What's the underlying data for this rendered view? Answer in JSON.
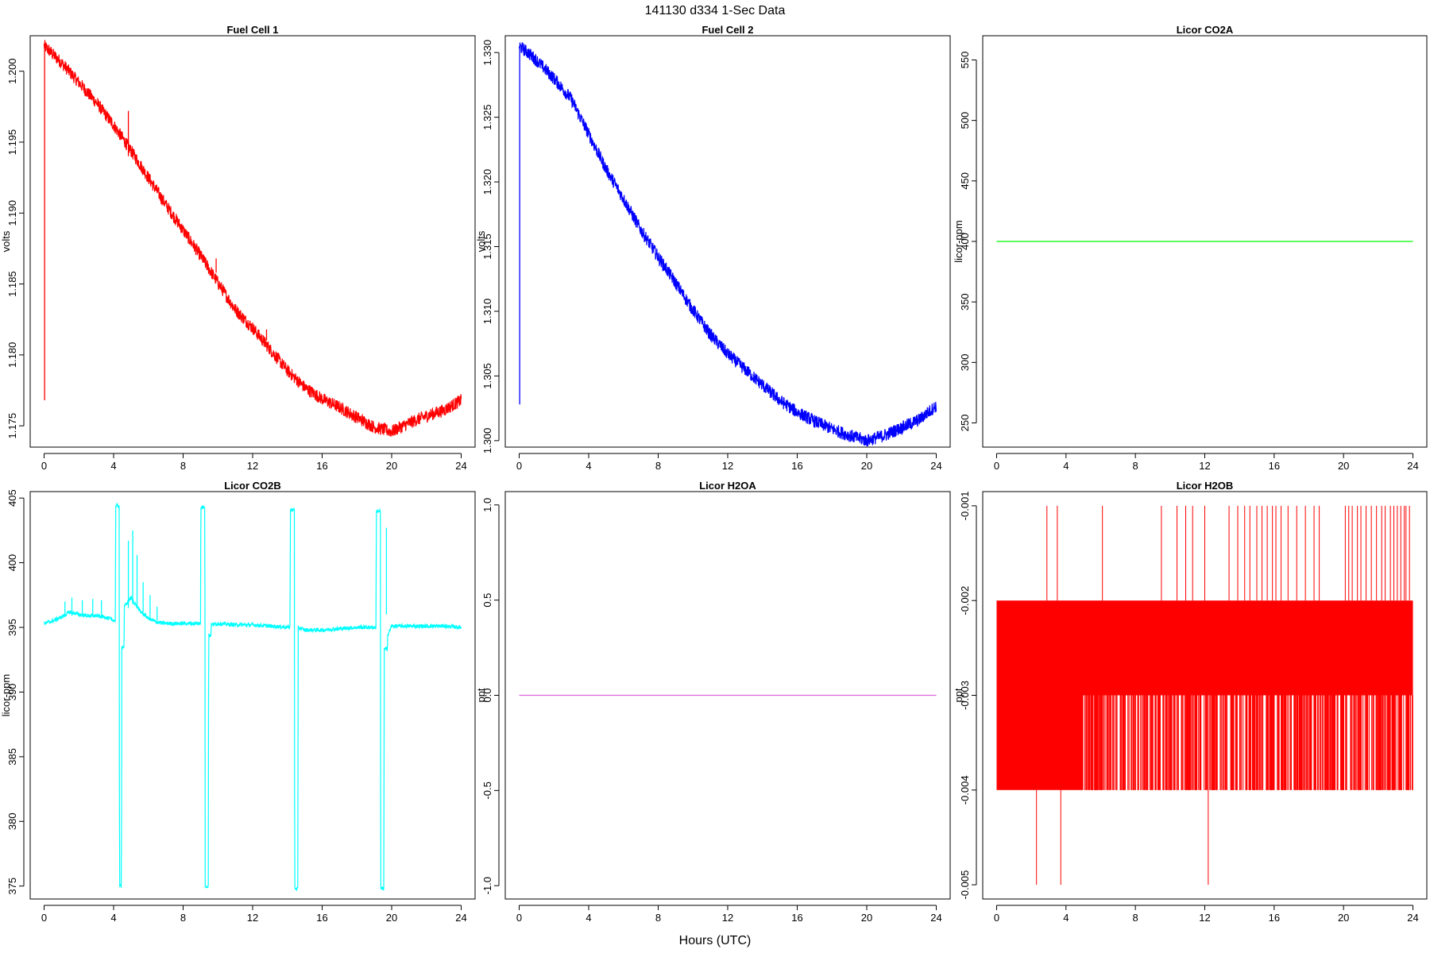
{
  "figure": {
    "title": "141130   d334   1-Sec Data",
    "xlabel": "Hours (UTC)"
  },
  "chart_data": [
    {
      "type": "line",
      "title": "Fuel Cell 1",
      "ylabel": "volts",
      "color": "#ff0000",
      "xlim": [
        -0.8,
        24.8
      ],
      "ylim": [
        1.1735,
        1.2025
      ],
      "xticks": [
        "0",
        "4",
        "8",
        "12",
        "16",
        "20",
        "24"
      ],
      "yticks": [
        1.175,
        1.18,
        1.185,
        1.19,
        1.195,
        1.2
      ],
      "ytick_labels": [
        "1.175",
        "1.180",
        "1.185",
        "1.190",
        "1.195",
        "1.200"
      ],
      "noise": 0.00045,
      "x": [
        0,
        0.5,
        1,
        2,
        3,
        4,
        5,
        6,
        7,
        8,
        9,
        10,
        11,
        12,
        13,
        14,
        15,
        16,
        17,
        18,
        19,
        20,
        21,
        22,
        23,
        24
      ],
      "y": [
        1.2018,
        1.2012,
        1.2006,
        1.1992,
        1.1978,
        1.1962,
        1.1944,
        1.1925,
        1.1906,
        1.1888,
        1.187,
        1.1851,
        1.1832,
        1.1819,
        1.1804,
        1.1789,
        1.1777,
        1.1769,
        1.1763,
        1.1756,
        1.1749,
        1.1746,
        1.1752,
        1.1757,
        1.1761,
        1.1768
      ],
      "spikes": [
        {
          "x": 0.03,
          "y0": 1.1768,
          "y1": 1.2018
        },
        {
          "x": 4.85,
          "y0": 1.194,
          "y1": 1.1972
        },
        {
          "x": 9.9,
          "y0": 1.1858,
          "y1": 1.1868
        },
        {
          "x": 12.8,
          "y0": 1.181,
          "y1": 1.1818
        }
      ]
    },
    {
      "type": "line",
      "title": "Fuel Cell 2",
      "ylabel": "volts",
      "color": "#0000ff",
      "xlim": [
        -0.8,
        24.8
      ],
      "ylim": [
        1.2995,
        1.3313
      ],
      "xticks": [
        "0",
        "4",
        "8",
        "12",
        "16",
        "20",
        "24"
      ],
      "yticks": [
        1.3,
        1.305,
        1.31,
        1.315,
        1.32,
        1.325,
        1.33
      ],
      "ytick_labels": [
        "1.300",
        "1.305",
        "1.310",
        "1.315",
        "1.320",
        "1.325",
        "1.330"
      ],
      "noise": 0.0005,
      "x": [
        0,
        0.5,
        1,
        2,
        3,
        4,
        5,
        6,
        7,
        8,
        9,
        10,
        11,
        12,
        13,
        14,
        15,
        16,
        17,
        18,
        19,
        20,
        21,
        22,
        23,
        24
      ],
      "y": [
        1.3305,
        1.33,
        1.3294,
        1.328,
        1.3264,
        1.3237,
        1.321,
        1.3187,
        1.3163,
        1.3142,
        1.3122,
        1.3101,
        1.3082,
        1.3067,
        1.3055,
        1.3043,
        1.3031,
        1.3022,
        1.3015,
        1.3009,
        1.3004,
        1.3,
        1.3004,
        1.301,
        1.3016,
        1.3027
      ],
      "spikes": [
        {
          "x": 0.03,
          "y0": 1.3028,
          "y1": 1.3305
        }
      ]
    },
    {
      "type": "line",
      "title": "Licor CO2A",
      "ylabel": "licor-ppm",
      "color": "#00ff00",
      "xlim": [
        -0.8,
        24.8
      ],
      "ylim": [
        230,
        570
      ],
      "xticks": [
        "0",
        "4",
        "8",
        "12",
        "16",
        "20",
        "24"
      ],
      "yticks": [
        250,
        300,
        350,
        400,
        450,
        500,
        550
      ],
      "ytick_labels": [
        "250",
        "300",
        "350",
        "400",
        "450",
        "500",
        "550"
      ],
      "noise": 0,
      "x": [
        0,
        24
      ],
      "y": [
        400,
        400
      ]
    },
    {
      "type": "line",
      "title": "Licor CO2B",
      "ylabel": "licor-ppm",
      "color": "#00ffff",
      "xlim": [
        -0.8,
        24.8
      ],
      "ylim": [
        374,
        405.5
      ],
      "xticks": [
        "0",
        "4",
        "8",
        "12",
        "16",
        "20",
        "24"
      ],
      "yticks": [
        375,
        380,
        385,
        390,
        395,
        400,
        405
      ],
      "ytick_labels": [
        "375",
        "380",
        "385",
        "390",
        "395",
        "400",
        "405"
      ],
      "noise": 0.15,
      "x": [
        0,
        0.5,
        1,
        1.5,
        2,
        2.5,
        3,
        3.5,
        4.1,
        4.12,
        4.32,
        4.34,
        4.45,
        4.47,
        4.6,
        4.62,
        5,
        5.5,
        6,
        6.5,
        7,
        8,
        9.0,
        9.02,
        9.25,
        9.27,
        9.45,
        9.47,
        9.6,
        9.62,
        10,
        11,
        12,
        13,
        14.15,
        14.17,
        14.4,
        14.42,
        14.6,
        14.62,
        15,
        16,
        17,
        18,
        19.1,
        19.12,
        19.35,
        19.37,
        19.55,
        19.57,
        19.75,
        19.77,
        20,
        21,
        22,
        23,
        24
      ],
      "y": [
        395.3,
        395.5,
        395.8,
        396.2,
        396.0,
        395.9,
        395.9,
        395.8,
        395.5,
        404.4,
        404.4,
        375.0,
        375.0,
        393.5,
        393.5,
        396.6,
        397.3,
        396.3,
        395.7,
        395.4,
        395.3,
        395.3,
        395.3,
        404.3,
        404.3,
        375.0,
        375.0,
        394.4,
        394.4,
        395.2,
        395.3,
        395.2,
        395.2,
        395.1,
        395.0,
        404.1,
        404.1,
        374.8,
        374.8,
        395.0,
        394.8,
        394.8,
        394.9,
        395.0,
        395.0,
        404.0,
        404.0,
        374.8,
        374.8,
        393.3,
        393.3,
        394.4,
        395.1,
        395.1,
        395.1,
        395.1,
        395.0
      ],
      "spikes": [
        {
          "x": 1.2,
          "y0": 395.8,
          "y1": 397.0
        },
        {
          "x": 1.6,
          "y0": 395.9,
          "y1": 397.3
        },
        {
          "x": 2.2,
          "y0": 395.9,
          "y1": 397.1
        },
        {
          "x": 2.8,
          "y0": 395.8,
          "y1": 397.2
        },
        {
          "x": 3.3,
          "y0": 395.8,
          "y1": 397.1
        },
        {
          "x": 4.85,
          "y0": 396.5,
          "y1": 401.7
        },
        {
          "x": 5.1,
          "y0": 396.8,
          "y1": 402.5
        },
        {
          "x": 5.35,
          "y0": 396.5,
          "y1": 400.6
        },
        {
          "x": 5.7,
          "y0": 396.2,
          "y1": 398.5
        },
        {
          "x": 6.1,
          "y0": 395.8,
          "y1": 397.5
        },
        {
          "x": 6.5,
          "y0": 395.5,
          "y1": 396.6
        },
        {
          "x": 19.7,
          "y0": 396.0,
          "y1": 402.7
        }
      ]
    },
    {
      "type": "line",
      "title": "Licor H2OA",
      "ylabel": "ppt",
      "color": "#dd66dd",
      "xlim": [
        -0.8,
        24.8
      ],
      "ylim": [
        -1.07,
        1.07
      ],
      "xticks": [
        "0",
        "4",
        "8",
        "12",
        "16",
        "20",
        "24"
      ],
      "yticks": [
        -1.0,
        -0.5,
        0.0,
        0.5,
        1.0
      ],
      "ytick_labels": [
        "-1.0",
        "-0.5",
        "0.0",
        "0.5",
        "1.0"
      ],
      "noise": 0,
      "x": [
        0,
        24
      ],
      "y": [
        0,
        0
      ]
    },
    {
      "type": "line",
      "title": "Licor H2OB",
      "ylabel": "ppt",
      "color": "#ff0000",
      "xlim": [
        -0.8,
        24.8
      ],
      "ylim": [
        -0.00515,
        -0.00085
      ],
      "xticks": [
        "0",
        "4",
        "8",
        "12",
        "16",
        "20",
        "24"
      ],
      "yticks": [
        -0.005,
        -0.004,
        -0.003,
        -0.002,
        -0.001
      ],
      "ytick_labels": [
        "-0.005",
        "-0.004",
        "-0.003",
        "-0.002",
        "-0.001"
      ],
      "noise": 0,
      "x": [],
      "y": [],
      "band": {
        "x0": 0,
        "x1": 24,
        "y0": -0.003,
        "y1": -0.002
      },
      "lower_band": {
        "x0": 0,
        "x1": 5.0,
        "y0": -0.004,
        "y1": -0.003
      },
      "upward_spikes": [
        2.9,
        3.5,
        6.1,
        9.5,
        10.4,
        10.9,
        11.3,
        12.0,
        13.4,
        13.9,
        14.3,
        14.6,
        15.0,
        15.3,
        15.6,
        15.9,
        16.1,
        16.4,
        16.8,
        17.3,
        17.8,
        18.3,
        18.6,
        20.1,
        20.3,
        20.5,
        20.8,
        21.0,
        21.3,
        21.6,
        21.9,
        22.2,
        22.4,
        22.7,
        22.9,
        23.1,
        23.3,
        23.5,
        23.6,
        23.8
      ],
      "downward_spikes": [
        2.3,
        3.7,
        12.2
      ]
    }
  ]
}
